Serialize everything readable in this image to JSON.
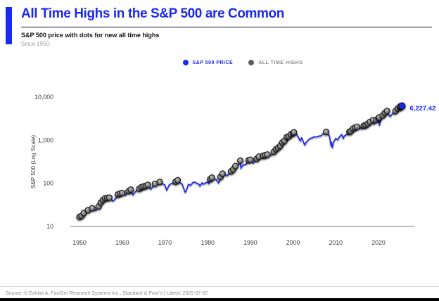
{
  "header": {
    "title": "All Time Highs in the S&P 500 are Common",
    "subtitle": "S&P 500 price with dots for new all time highs",
    "since": "Since 1950."
  },
  "legend": {
    "items": [
      {
        "label": "S&P 500 PRICE",
        "color": "#1b2af0"
      },
      {
        "label": "ALL TIME HIGHS",
        "color": "#5f5f5f"
      }
    ]
  },
  "colors": {
    "accent": "#1b2af0",
    "ath_dot": "#8c8c8c",
    "axis_text": "#3f3f3f",
    "axis_line": "#a6a6a6"
  },
  "footer": {
    "source": "Source: © Exhibit A, FactSet Research Systems Inc., Standard & Poor's | Latest: 2025-07-02"
  },
  "chart_data": {
    "type": "line",
    "y_scale": "log",
    "ylabel": "S&P 500 (Log Scale)",
    "xlabel": "",
    "xlim": [
      1950,
      2026.5
    ],
    "ylim": [
      10,
      20000
    ],
    "grid": false,
    "legend_position": "top-center",
    "x_ticks": [
      1950,
      1960,
      1970,
      1980,
      1990,
      2000,
      2010,
      2020
    ],
    "y_ticks": [
      {
        "v": 10000,
        "label": "10,000"
      },
      {
        "v": 1000,
        "label": "1,000"
      },
      {
        "v": 100,
        "label": "100"
      },
      {
        "v": 10,
        "label": "10"
      }
    ],
    "end_label": "6,227.42",
    "end_value": 6227.42,
    "ath_rule": "gray dot at every point that sets a new running maximum since 1950",
    "series": [
      {
        "name": "S&P 500 PRICE",
        "points": [
          [
            1950.0,
            16.7
          ],
          [
            1950.5,
            17.7
          ],
          [
            1951.0,
            20.4
          ],
          [
            1952.0,
            23.8
          ],
          [
            1953.0,
            26.6
          ],
          [
            1953.8,
            23.5
          ],
          [
            1954.0,
            24.8
          ],
          [
            1954.5,
            29.2
          ],
          [
            1955.0,
            36.0
          ],
          [
            1955.5,
            41.0
          ],
          [
            1956.0,
            45.5
          ],
          [
            1956.5,
            46.0
          ],
          [
            1957.0,
            46.7
          ],
          [
            1957.8,
            39.0
          ],
          [
            1958.0,
            40.0
          ],
          [
            1958.5,
            45.3
          ],
          [
            1959.0,
            55.2
          ],
          [
            1959.5,
            58.0
          ],
          [
            1960.0,
            59.9
          ],
          [
            1960.8,
            53.0
          ],
          [
            1961.0,
            58.1
          ],
          [
            1961.5,
            66.1
          ],
          [
            1962.0,
            71.6
          ],
          [
            1962.5,
            54.0
          ],
          [
            1963.0,
            63.1
          ],
          [
            1963.5,
            69.9
          ],
          [
            1964.0,
            75.0
          ],
          [
            1964.5,
            81.7
          ],
          [
            1965.0,
            84.8
          ],
          [
            1965.5,
            87.1
          ],
          [
            1966.0,
            92.4
          ],
          [
            1966.7,
            73.2
          ],
          [
            1967.0,
            80.3
          ],
          [
            1967.7,
            97.6
          ],
          [
            1968.0,
            96.5
          ],
          [
            1968.8,
            108.4
          ],
          [
            1969.0,
            103.9
          ],
          [
            1969.5,
            97.7
          ],
          [
            1970.0,
            92.1
          ],
          [
            1970.4,
            69.3
          ],
          [
            1971.0,
            92.2
          ],
          [
            1971.5,
            99.7
          ],
          [
            1972.0,
            102.1
          ],
          [
            1972.5,
            109.0
          ],
          [
            1973.0,
            118.1
          ],
          [
            1973.5,
            104.0
          ],
          [
            1974.0,
            97.6
          ],
          [
            1974.75,
            62.3
          ],
          [
            1975.0,
            68.6
          ],
          [
            1975.5,
            95.2
          ],
          [
            1976.0,
            90.2
          ],
          [
            1976.5,
            104.3
          ],
          [
            1977.0,
            107.5
          ],
          [
            1977.5,
            100.2
          ],
          [
            1978.0,
            95.1
          ],
          [
            1978.2,
            86.9
          ],
          [
            1978.7,
            103.9
          ],
          [
            1979.0,
            96.1
          ],
          [
            1979.5,
            102.9
          ],
          [
            1980.0,
            107.9
          ],
          [
            1980.3,
            98.2
          ],
          [
            1980.6,
            125.5
          ],
          [
            1981.0,
            135.8
          ],
          [
            1981.5,
            129.1
          ],
          [
            1982.0,
            122.6
          ],
          [
            1982.6,
            102.4
          ],
          [
            1983.0,
            140.6
          ],
          [
            1983.5,
            168.1
          ],
          [
            1984.0,
            164.9
          ],
          [
            1984.5,
            150.0
          ],
          [
            1985.0,
            167.2
          ],
          [
            1985.5,
            191.0
          ],
          [
            1986.0,
            211.3
          ],
          [
            1986.5,
            250.8
          ],
          [
            1987.0,
            242.2
          ],
          [
            1987.65,
            336.8
          ],
          [
            1987.8,
            225.0
          ],
          [
            1988.0,
            247.1
          ],
          [
            1988.5,
            273.5
          ],
          [
            1989.0,
            277.7
          ],
          [
            1989.6,
            346.0
          ],
          [
            1990.0,
            353.4
          ],
          [
            1990.75,
            295.5
          ],
          [
            1991.0,
            330.2
          ],
          [
            1991.5,
            371.2
          ],
          [
            1992.0,
            417.1
          ],
          [
            1992.5,
            408.1
          ],
          [
            1993.0,
            435.7
          ],
          [
            1993.5,
            450.5
          ],
          [
            1994.0,
            466.5
          ],
          [
            1994.5,
            444.3
          ],
          [
            1995.0,
            459.3
          ],
          [
            1995.5,
            539.0
          ],
          [
            1996.0,
            615.9
          ],
          [
            1996.5,
            670.6
          ],
          [
            1997.0,
            740.7
          ],
          [
            1997.5,
            885.1
          ],
          [
            1998.0,
            970.4
          ],
          [
            1998.55,
            1186.8
          ],
          [
            1998.67,
            957.3
          ],
          [
            1999.0,
            1229.2
          ],
          [
            1999.5,
            1372.7
          ],
          [
            2000.0,
            1469.3
          ],
          [
            2000.2,
            1527.5
          ],
          [
            2000.7,
            1436.5
          ],
          [
            2001.0,
            1320.3
          ],
          [
            2001.7,
            965.8
          ],
          [
            2002.0,
            1148.1
          ],
          [
            2002.75,
            776.8
          ],
          [
            2003.0,
            879.8
          ],
          [
            2003.5,
            998.7
          ],
          [
            2004.0,
            1111.9
          ],
          [
            2004.5,
            1140.8
          ],
          [
            2005.0,
            1211.9
          ],
          [
            2005.5,
            1191.3
          ],
          [
            2006.0,
            1248.3
          ],
          [
            2006.5,
            1270.2
          ],
          [
            2007.0,
            1418.3
          ],
          [
            2007.75,
            1565.2
          ],
          [
            2008.0,
            1468.4
          ],
          [
            2008.5,
            1280.0
          ],
          [
            2008.9,
            752.4
          ],
          [
            2009.0,
            903.3
          ],
          [
            2009.2,
            676.5
          ],
          [
            2009.5,
            919.3
          ],
          [
            2010.0,
            1115.1
          ],
          [
            2010.5,
            1030.7
          ],
          [
            2011.0,
            1257.6
          ],
          [
            2011.4,
            1363.6
          ],
          [
            2011.75,
            1099.2
          ],
          [
            2012.0,
            1257.6
          ],
          [
            2012.5,
            1362.2
          ],
          [
            2013.0,
            1426.2
          ],
          [
            2013.2,
            1569.2
          ],
          [
            2013.5,
            1631.9
          ],
          [
            2014.0,
            1848.4
          ],
          [
            2014.5,
            1960.2
          ],
          [
            2015.0,
            2058.9
          ],
          [
            2015.65,
            1867.6
          ],
          [
            2016.0,
            2043.9
          ],
          [
            2016.1,
            1829.1
          ],
          [
            2016.55,
            2175.0
          ],
          [
            2017.0,
            2238.8
          ],
          [
            2017.5,
            2425.0
          ],
          [
            2018.0,
            2673.6
          ],
          [
            2018.1,
            2581.0
          ],
          [
            2018.75,
            2930.8
          ],
          [
            2018.98,
            2351.1
          ],
          [
            2019.0,
            2506.9
          ],
          [
            2019.5,
            2941.8
          ],
          [
            2020.0,
            3230.8
          ],
          [
            2020.15,
            3386.2
          ],
          [
            2020.23,
            2237.4
          ],
          [
            2020.6,
            3100.3
          ],
          [
            2021.0,
            3756.1
          ],
          [
            2021.5,
            4297.5
          ],
          [
            2022.0,
            4766.2
          ],
          [
            2022.5,
            3785.4
          ],
          [
            2022.75,
            3577.0
          ],
          [
            2023.0,
            3839.5
          ],
          [
            2023.5,
            4450.4
          ],
          [
            2023.8,
            4117.4
          ],
          [
            2024.0,
            4769.8
          ],
          [
            2024.5,
            5460.5
          ],
          [
            2025.0,
            5881.6
          ],
          [
            2025.1,
            6144.2
          ],
          [
            2025.3,
            4982.8
          ],
          [
            2025.5,
            6227.42
          ]
        ]
      }
    ]
  }
}
